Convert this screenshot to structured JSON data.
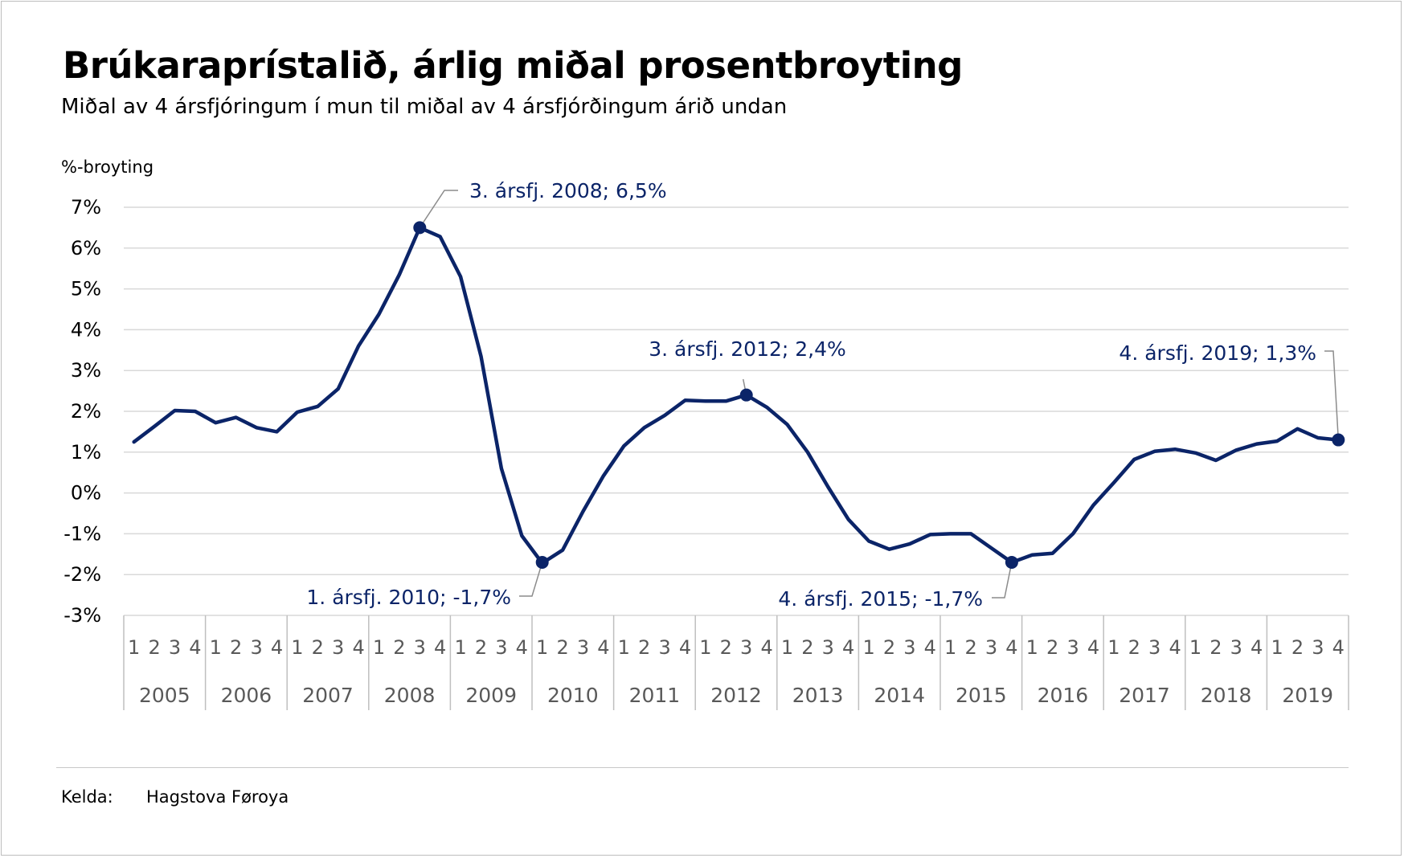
{
  "title": "Brúkaraprístalið, árlig miðal prosentbroyting",
  "subtitle": "Miðal av 4 ársfjóringum í mun til miðal av 4 ársfjórðingum árið undan",
  "source": {
    "label": "Kelda:",
    "value": "Hagstova Føroya"
  },
  "colors": {
    "line": "#0b2468",
    "annotation": "#0b2468",
    "grid": "#d9d9d9",
    "axis": "#bfbfbf",
    "tick_text": "#595959"
  },
  "chart_data": {
    "type": "line",
    "ylabel": "%-broyting",
    "ylim": [
      -3,
      7
    ],
    "y_ticks": [
      "7%",
      "6%",
      "5%",
      "4%",
      "3%",
      "2%",
      "1%",
      "0%",
      "-1%",
      "-2%",
      "-3%"
    ],
    "y_tick_values": [
      7,
      6,
      5,
      4,
      3,
      2,
      1,
      0,
      -1,
      -2,
      -3
    ],
    "grid": true,
    "years": [
      "2005",
      "2006",
      "2007",
      "2008",
      "2009",
      "2010",
      "2011",
      "2012",
      "2013",
      "2014",
      "2015",
      "2016",
      "2017",
      "2018",
      "2019"
    ],
    "quarters": [
      "1",
      "2",
      "3",
      "4"
    ],
    "values": [
      1.25,
      1.63,
      2.02,
      2.0,
      1.72,
      1.85,
      1.6,
      1.5,
      1.98,
      2.12,
      2.55,
      3.6,
      4.38,
      5.35,
      6.5,
      6.28,
      5.3,
      3.35,
      0.6,
      -1.05,
      -1.72,
      -1.4,
      -0.45,
      0.42,
      1.15,
      1.6,
      1.9,
      2.27,
      2.25,
      2.25,
      2.4,
      2.1,
      1.68,
      1.0,
      0.15,
      -0.65,
      -1.18,
      -1.38,
      -1.25,
      -1.02,
      -1.0,
      -1.0,
      -1.35,
      -1.7,
      -1.52,
      -1.48,
      -1.0,
      -0.3,
      0.25,
      0.82,
      1.02,
      1.07,
      0.98,
      0.8,
      1.05,
      1.2,
      1.27,
      1.57,
      1.35,
      1.3
    ],
    "annotations": [
      {
        "text": "3. ársfj. 2008; 6,5%",
        "index": 14,
        "value": 6.5
      },
      {
        "text": "1. ársfj. 2010; -1,7%",
        "index": 20,
        "value": -1.7
      },
      {
        "text": "3. ársfj. 2012; 2,4%",
        "index": 30,
        "value": 2.4
      },
      {
        "text": "4. ársfj. 2015; -1,7%",
        "index": 43,
        "value": -1.7
      },
      {
        "text": "4. ársfj. 2019; 1,3%",
        "index": 59,
        "value": 1.3
      }
    ]
  }
}
